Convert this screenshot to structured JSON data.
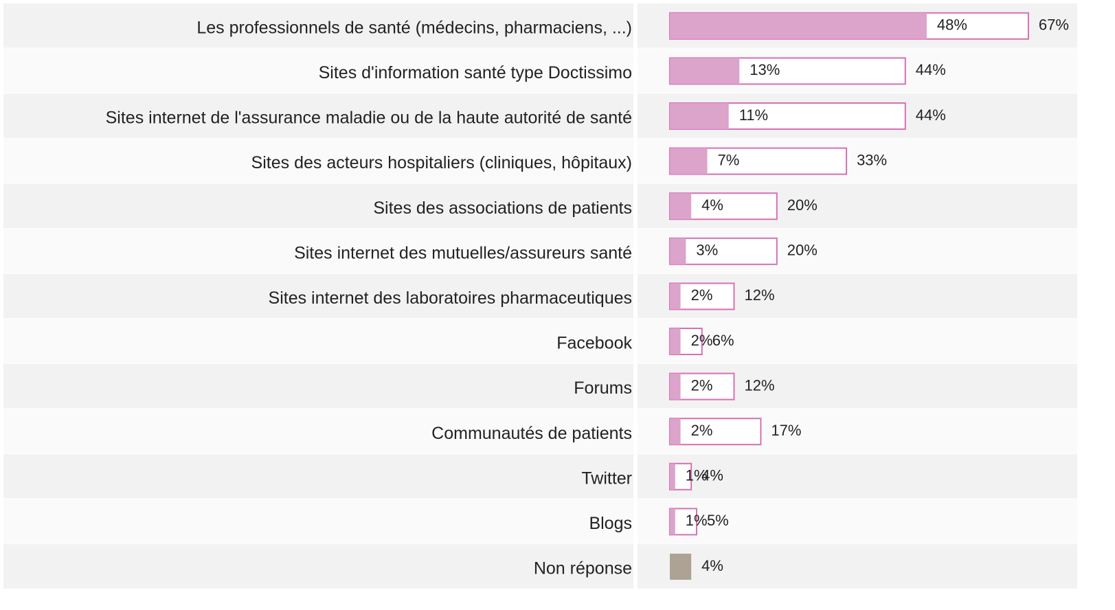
{
  "chart_data": {
    "type": "bar",
    "categories": [
      "Les professionnels de santé (médecins, pharmaciens, ...)",
      "Sites d'information santé type Doctissimo",
      "Sites internet de l'assurance maladie ou de la haute autorité de santé",
      "Sites des acteurs hospitaliers (cliniques, hôpitaux)",
      "Sites des associations de patients",
      "Sites internet des mutuelles/assureurs santé",
      "Sites internet des laboratoires pharmaceutiques",
      "Facebook",
      "Forums",
      "Communautés de patients",
      "Twitter",
      "Blogs",
      "Non réponse"
    ],
    "series": [
      {
        "color": "#dca3cb",
        "fill": true,
        "values": [
          48,
          13,
          11,
          7,
          4,
          3,
          2,
          2,
          2,
          2,
          1,
          1,
          null
        ],
        "value_labels": [
          "48%",
          "13%",
          "11%",
          "7%",
          "4%",
          "3%",
          "2%",
          "2%",
          "2%",
          "2%",
          "1%",
          "1%",
          null
        ]
      },
      {
        "color": "#d670b4",
        "fill": false,
        "values": [
          67,
          44,
          44,
          33,
          20,
          20,
          12,
          6,
          12,
          17,
          4,
          5,
          null
        ],
        "value_labels": [
          "67%",
          "44%",
          "44%",
          "33%",
          "20%",
          "20%",
          "12%",
          "6%",
          "12%",
          "17%",
          "4%",
          "5%",
          null
        ]
      },
      {
        "color": "#ada294",
        "fill": true,
        "values": [
          null,
          null,
          null,
          null,
          null,
          null,
          null,
          null,
          null,
          null,
          null,
          null,
          4
        ],
        "value_labels": [
          null,
          null,
          null,
          null,
          null,
          null,
          null,
          null,
          null,
          null,
          null,
          null,
          "4%"
        ]
      }
    ]
  }
}
